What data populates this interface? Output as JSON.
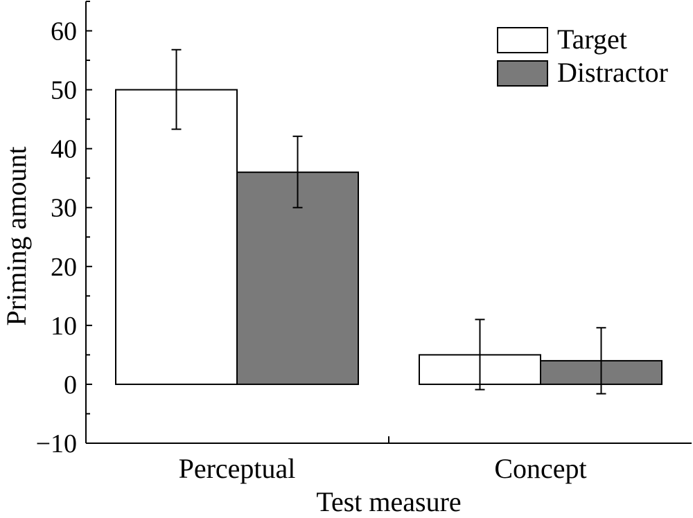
{
  "chart_data": {
    "type": "bar",
    "title": "",
    "xlabel": "Test measure",
    "ylabel": "Priming amount",
    "categories": [
      "Perceptual",
      "Concept"
    ],
    "series": [
      {
        "name": "Target",
        "color": "#ffffff",
        "values": [
          50,
          5
        ],
        "error_low": [
          43.3,
          -0.9
        ],
        "error_high": [
          56.8,
          11.0
        ]
      },
      {
        "name": "Distractor",
        "color": "#7a7a7a",
        "values": [
          36,
          4
        ],
        "error_low": [
          30.0,
          -1.6
        ],
        "error_high": [
          42.1,
          9.6
        ]
      }
    ],
    "ylim": [
      -10,
      65
    ],
    "yticks": [
      -10,
      0,
      10,
      20,
      30,
      40,
      50,
      60
    ],
    "ytick_labels": [
      "−10",
      "0",
      "10",
      "20",
      "30",
      "40",
      "50",
      "60"
    ],
    "minor_ytick_step": 5,
    "legend_position": "top-right",
    "grid": false
  }
}
